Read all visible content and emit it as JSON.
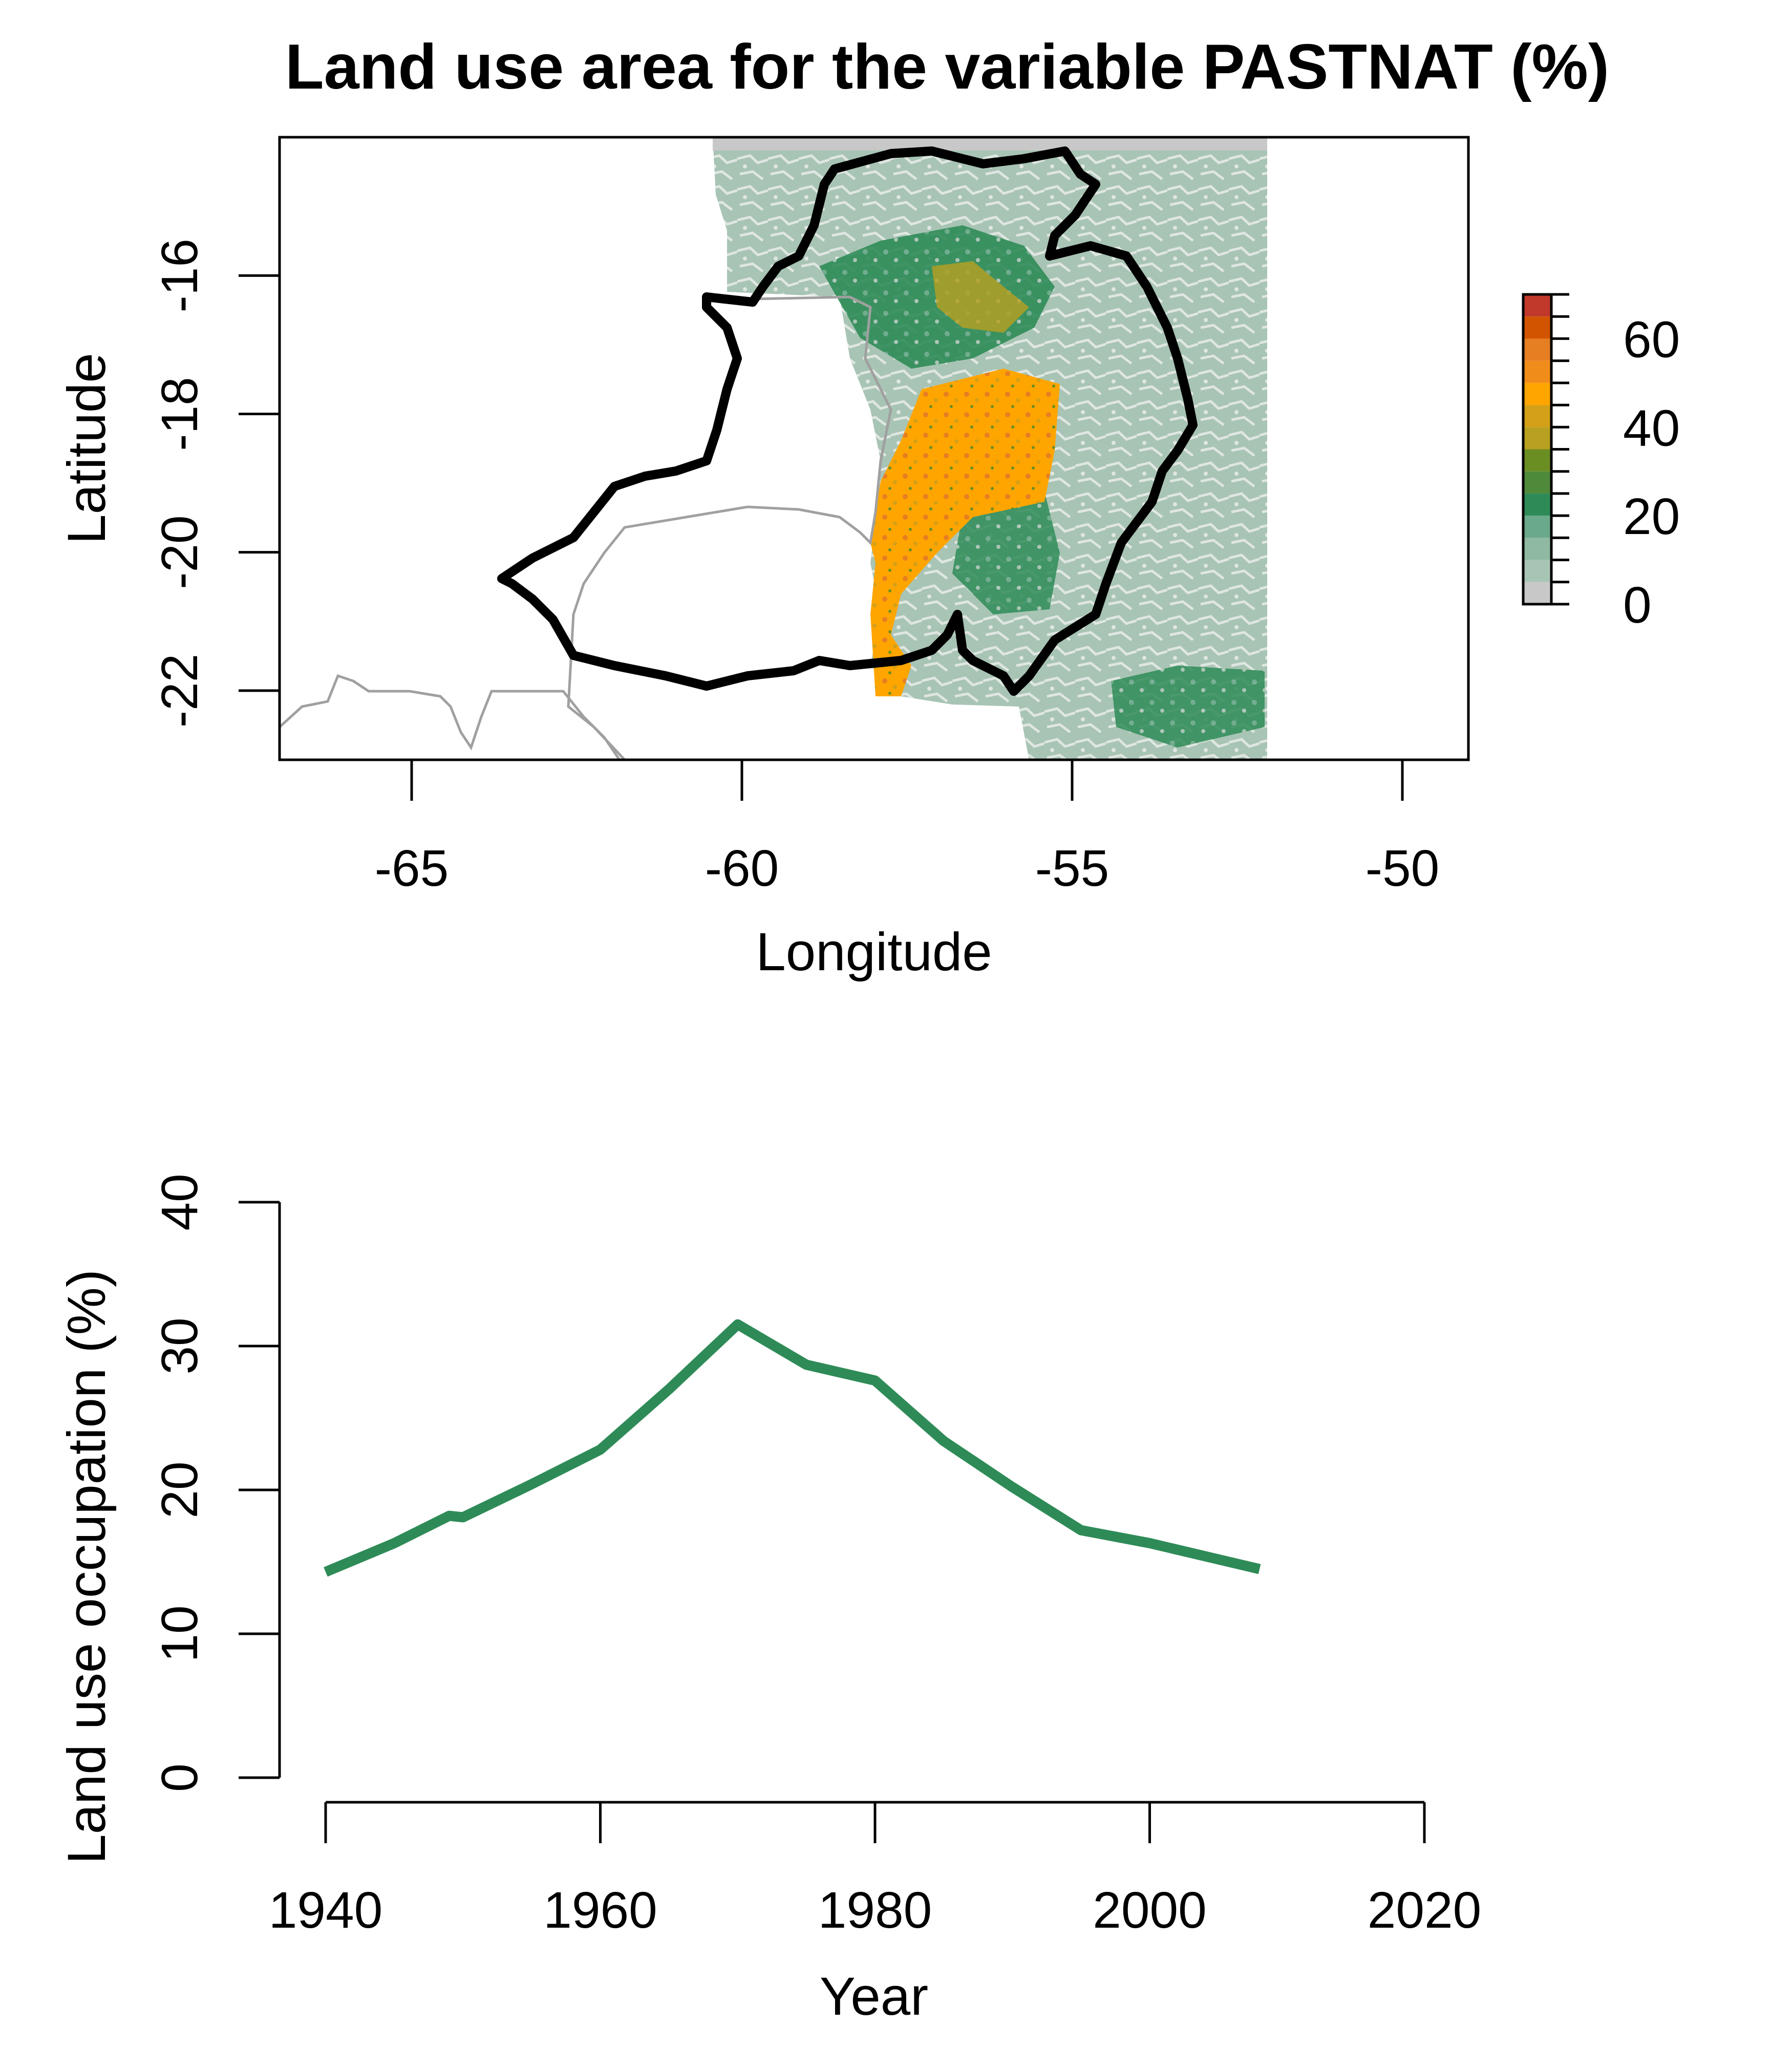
{
  "title": "Land use area for the variable PASTNAT (%)",
  "colors": {
    "na_gray": "#c8c8c8",
    "pale_green": "#a8c4b4",
    "mid_green": "#6aa98a",
    "dark_green": "#2e8b57",
    "olive": "#6b8e23",
    "gold": "#b8a020",
    "orange": "#ffa500",
    "dark_orange": "#e67e22",
    "red_orange": "#d35400",
    "red": "#c0392b",
    "border_black": "#000000",
    "country_border": "#a0a0a0",
    "line": "#2e8b57"
  },
  "chart_data": [
    {
      "type": "heatmap",
      "title": "Land use area for the variable PASTNAT (%)",
      "xlabel": "Longitude",
      "ylabel": "Latitude",
      "xlim": [
        -67,
        -49
      ],
      "ylim": [
        -23,
        -14
      ],
      "x_ticks": [
        -65,
        -60,
        -55,
        -50
      ],
      "y_ticks": [
        -16,
        -18,
        -20,
        -22
      ],
      "x_tick_labels": [
        "-65",
        "-60",
        "-55",
        "-50"
      ],
      "y_tick_labels": [
        "-16",
        "-18",
        "-20",
        "-22"
      ],
      "legend": {
        "position": "right",
        "breaks": [
          0,
          5,
          10,
          15,
          20,
          25,
          30,
          35,
          40,
          45,
          50,
          55,
          60,
          65,
          70
        ],
        "colors": [
          "#c8c8c8",
          "#a8c4b4",
          "#8fb9a2",
          "#6aa98a",
          "#2e8b57",
          "#4f8a3a",
          "#6b8e23",
          "#b8a020",
          "#d4a017",
          "#ffa500",
          "#f08c1a",
          "#e67e22",
          "#d35400",
          "#c0392b"
        ],
        "tick_values": [
          0,
          20,
          40,
          60
        ],
        "tick_labels": [
          "0",
          "20",
          "40",
          "60"
        ]
      }
    },
    {
      "type": "line",
      "xlabel": "Year",
      "ylabel": "Land use occupation (%)",
      "xlim": [
        1940,
        2020
      ],
      "ylim": [
        0,
        40
      ],
      "x_ticks": [
        1940,
        1960,
        1980,
        2000,
        2020
      ],
      "y_ticks": [
        0,
        10,
        20,
        30,
        40
      ],
      "x_tick_labels": [
        "1940",
        "1960",
        "1980",
        "2000",
        "2020"
      ],
      "y_tick_labels": [
        "0",
        "10",
        "20",
        "30",
        "40"
      ],
      "series": [
        {
          "x": [
            1940,
            1945,
            1949,
            1950,
            1955,
            1960,
            1965,
            1970,
            1975,
            1980,
            1985,
            1990,
            1995,
            2000,
            2008
          ],
          "y": [
            14.3,
            16.3,
            18.2,
            18.1,
            20.4,
            22.8,
            27.0,
            31.5,
            28.7,
            27.6,
            23.4,
            20.2,
            17.2,
            16.3,
            14.5
          ]
        }
      ]
    }
  ]
}
